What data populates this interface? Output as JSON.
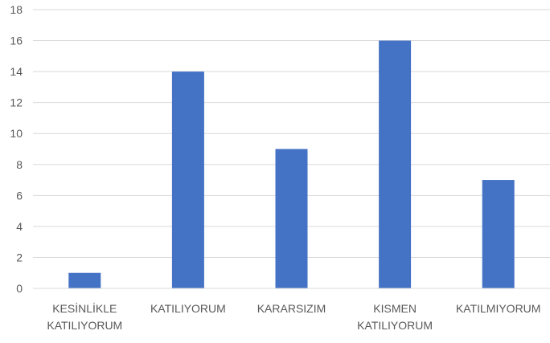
{
  "chart_data": {
    "type": "bar",
    "title": "",
    "xlabel": "",
    "ylabel": "",
    "ylim": [
      0,
      18
    ],
    "yticks": [
      0,
      2,
      4,
      6,
      8,
      10,
      12,
      14,
      16,
      18
    ],
    "grid": true,
    "legend": "none",
    "categories": [
      "KESİNLİKLE KATILIYORUM",
      "KATILIYORUM",
      "KARARSIZIM",
      "KISMEN KATILIYORUM",
      "KATILMIYORUM"
    ],
    "values": [
      1,
      14,
      9,
      16,
      7
    ],
    "colors": {
      "bar": "#4472c4",
      "grid": "#d9d9d9",
      "axis": "#d9d9d9",
      "text": "#595959"
    }
  }
}
